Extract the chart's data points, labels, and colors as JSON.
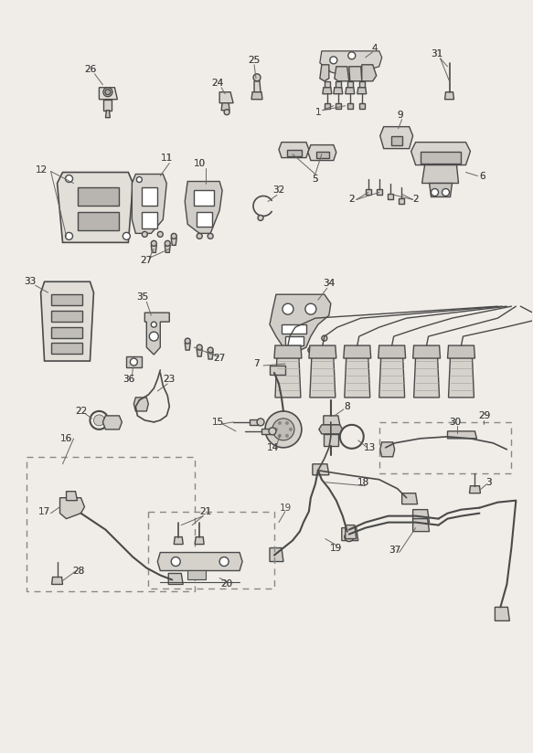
{
  "bg": "#f0ede8",
  "lc": "#4a4a4a",
  "lc2": "#666666",
  "dash_c": "#888888",
  "label_fs": 7.5,
  "fig_w": 5.83,
  "fig_h": 8.24,
  "dpi": 100
}
